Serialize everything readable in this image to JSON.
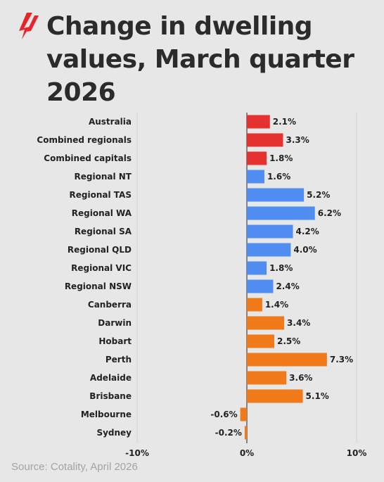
{
  "logo": {
    "name": "sbs-logo-icon",
    "color": "#e8242b"
  },
  "source": "Source: Cotality, April 2026",
  "colors": {
    "national": "#e63131",
    "regional": "#4f8df0",
    "capital": "#f07a1a",
    "grid": "#d3d3d3",
    "zero": "#222222",
    "background": "#e7e7e7"
  },
  "chart_data": {
    "type": "bar",
    "orientation": "horizontal",
    "title": "Change in dwelling values, March quarter 2026",
    "categories": [
      "Australia",
      "Combined regionals",
      "Combined capitals",
      "Regional NT",
      "Regional TAS",
      "Regional WA",
      "Regional SA",
      "Regional QLD",
      "Regional VIC",
      "Regional NSW",
      "Canberra",
      "Darwin",
      "Hobart",
      "Perth",
      "Adelaide",
      "Brisbane",
      "Melbourne",
      "Sydney"
    ],
    "values": [
      2.1,
      3.3,
      1.8,
      1.6,
      5.2,
      6.2,
      4.2,
      4.0,
      1.8,
      2.4,
      1.4,
      3.4,
      2.5,
      7.3,
      3.6,
      5.1,
      -0.6,
      -0.2
    ],
    "value_labels": [
      "2.1%",
      "3.3%",
      "1.8%",
      "1.6%",
      "5.2%",
      "6.2%",
      "4.2%",
      "4.0%",
      "1.8%",
      "2.4%",
      "1.4%",
      "3.4%",
      "2.5%",
      "7.3%",
      "3.6%",
      "5.1%",
      "-0.6%",
      "-0.2%"
    ],
    "groups": [
      "national",
      "national",
      "national",
      "regional",
      "regional",
      "regional",
      "regional",
      "regional",
      "regional",
      "regional",
      "capital",
      "capital",
      "capital",
      "capital",
      "capital",
      "capital",
      "capital",
      "capital"
    ],
    "xlim": [
      -10,
      10
    ],
    "xticks": [
      -10,
      0,
      10
    ],
    "xtick_labels": [
      "-10%",
      "0%",
      "10%"
    ],
    "xlabel": "",
    "ylabel": "",
    "grid": true,
    "legend": "none"
  }
}
